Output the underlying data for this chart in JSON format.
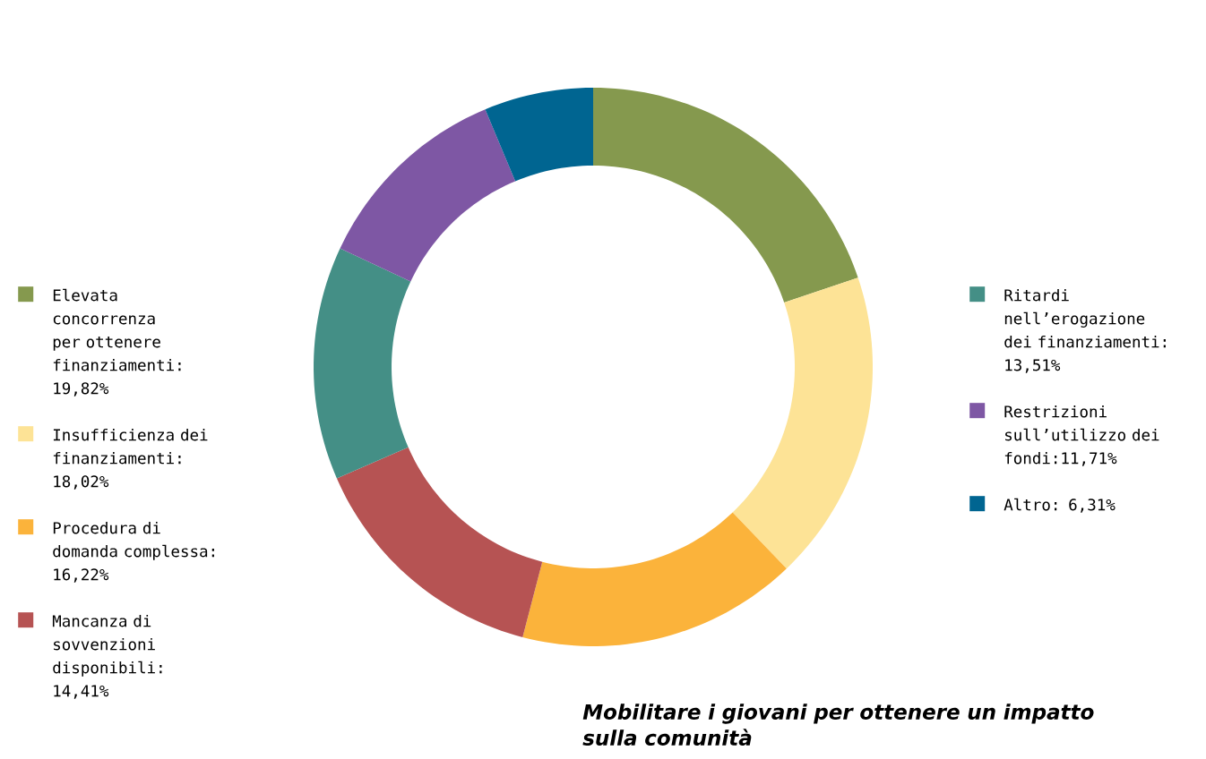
{
  "chart_data": {
    "type": "donut",
    "title": "Mobilitare i giovani per ottenere un impatto sulla comunità",
    "categories": [
      "Elevata concorrenza per ottenere finanziamenti: 19,82%",
      "Insufficienza dei finanziamenti: 18,02%",
      "Procedura di domanda complessa: 16,22%",
      "Mancanza di sovvenzioni disponibili: 14,41%",
      "Ritardi nell’erogazione dei finanziamenti: 13,51%",
      "Restrizioni sull’utilizzo dei fondi:11,71%",
      "Altro: 6,31%"
    ],
    "values": [
      19.82,
      18.02,
      16.22,
      14.41,
      13.51,
      11.71,
      6.31
    ],
    "colors": [
      "#85994e",
      "#fde396",
      "#fbb33b",
      "#b65353",
      "#448f86",
      "#7e57a4",
      "#006591"
    ],
    "legend": "left"
  }
}
